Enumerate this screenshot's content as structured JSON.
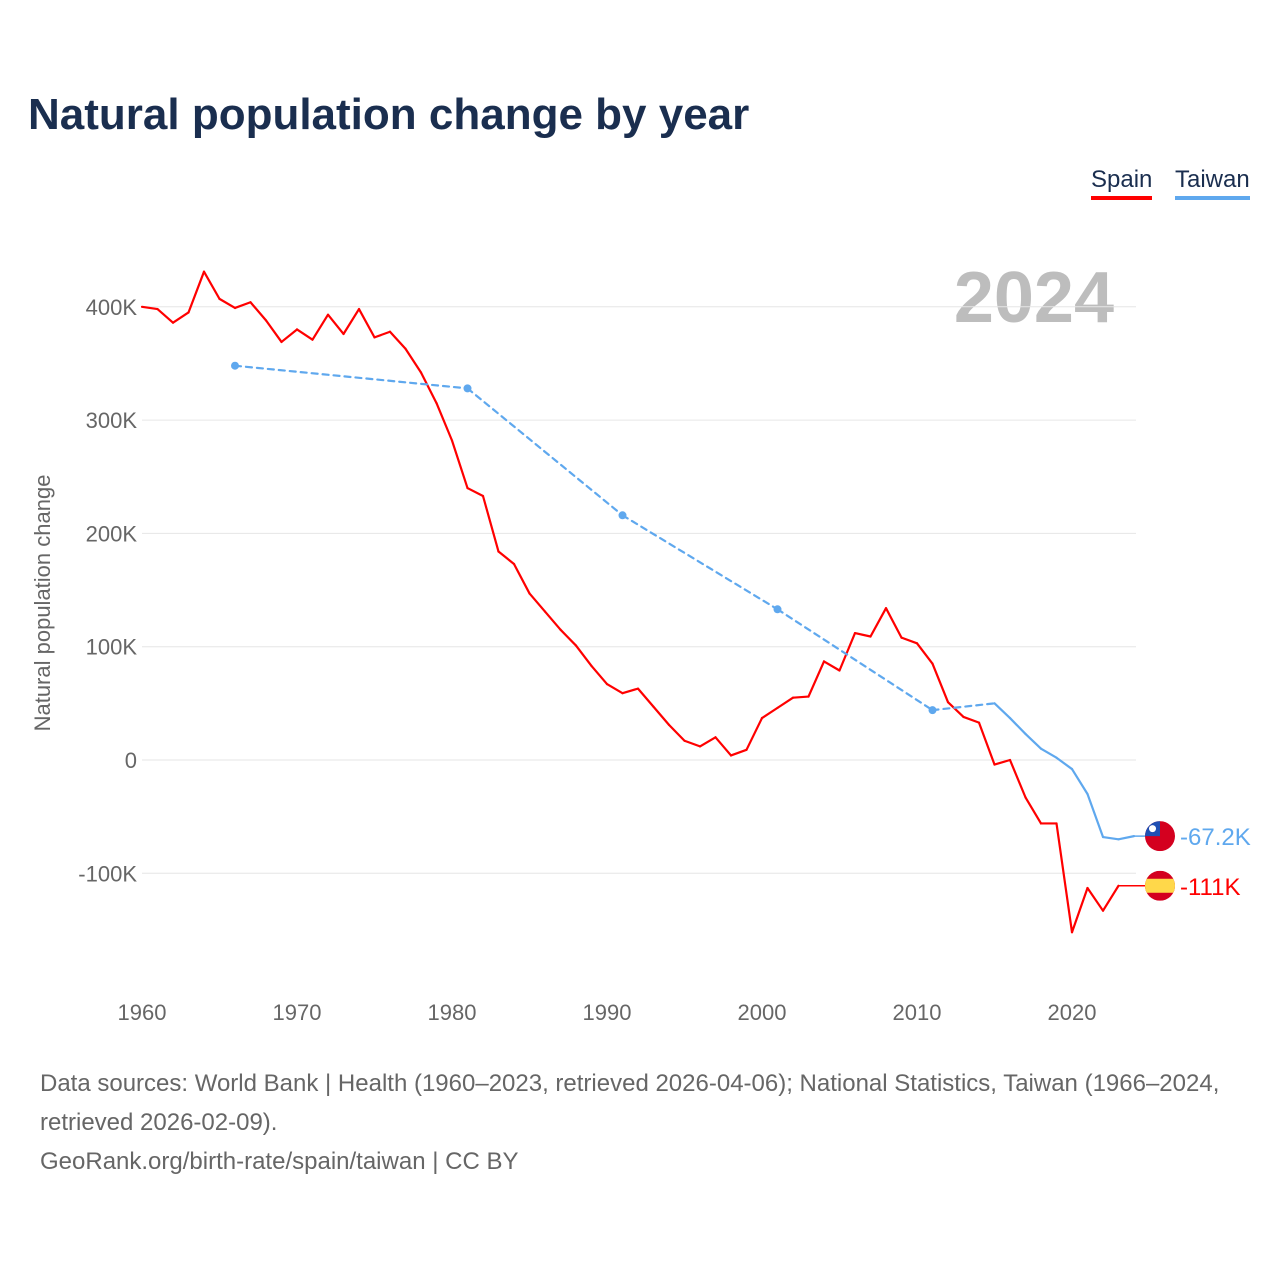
{
  "chart_data": {
    "type": "line",
    "title": "Natural population change by year",
    "xlabel": "",
    "ylabel": "Natural population change",
    "xlim": [
      1960,
      2024
    ],
    "ylim": [
      -185000,
      440000
    ],
    "x_ticks": [
      1960,
      1970,
      1980,
      1990,
      2000,
      2010,
      2020
    ],
    "y_ticks": [
      -100000,
      0,
      100000,
      200000,
      300000,
      400000
    ],
    "y_tick_labels": [
      "-100K",
      "0",
      "100K",
      "200K",
      "300K",
      "400K"
    ],
    "grid": true,
    "year_watermark": "2024",
    "legend_position": "top-right",
    "series": [
      {
        "name": "Spain",
        "color": "#ff0000",
        "end_label": "-111K",
        "x": [
          1960,
          1961,
          1962,
          1963,
          1964,
          1965,
          1966,
          1967,
          1968,
          1969,
          1970,
          1971,
          1972,
          1973,
          1974,
          1975,
          1976,
          1977,
          1978,
          1979,
          1980,
          1981,
          1982,
          1983,
          1984,
          1985,
          1986,
          1987,
          1988,
          1989,
          1990,
          1991,
          1992,
          1993,
          1994,
          1995,
          1996,
          1997,
          1998,
          1999,
          2000,
          2001,
          2002,
          2003,
          2004,
          2005,
          2006,
          2007,
          2008,
          2009,
          2010,
          2011,
          2012,
          2013,
          2014,
          2015,
          2016,
          2017,
          2018,
          2019,
          2020,
          2021,
          2022,
          2023
        ],
        "values": [
          400000,
          398000,
          386000,
          395000,
          431000,
          407000,
          399000,
          404000,
          388000,
          369000,
          380000,
          371000,
          393000,
          376000,
          398000,
          373000,
          378000,
          363000,
          342000,
          315000,
          282000,
          240000,
          233000,
          184000,
          173000,
          147000,
          131000,
          115000,
          101000,
          83000,
          67000,
          59000,
          63000,
          47000,
          31000,
          17000,
          12000,
          20000,
          4000,
          9000,
          37000,
          46000,
          55000,
          56000,
          87000,
          79000,
          112000,
          109000,
          134000,
          108000,
          103000,
          85000,
          51000,
          38000,
          33000,
          -4000,
          0,
          -33000,
          -56000,
          -56000,
          -152000,
          -113000,
          -133000,
          -111000
        ]
      },
      {
        "name": "Taiwan",
        "color": "#5fa8ee",
        "end_label": "-67.2K",
        "x": [
          1966,
          1981,
          1991,
          2001,
          2011,
          2015,
          2016,
          2017,
          2018,
          2019,
          2020,
          2021,
          2022,
          2023,
          2024
        ],
        "values": [
          348000,
          328000,
          216000,
          133000,
          44000,
          50000,
          37000,
          23000,
          10000,
          2000,
          -8000,
          -30000,
          -68000,
          -70000,
          -67200
        ]
      }
    ]
  },
  "footer": {
    "sources": "Data sources: World Bank | Health (1960–2023, retrieved 2026-04-06); National Statistics, Taiwan (1966–2024, retrieved 2026-02-09).",
    "credit": "GeoRank.org/birth-rate/spain/taiwan | CC BY"
  }
}
